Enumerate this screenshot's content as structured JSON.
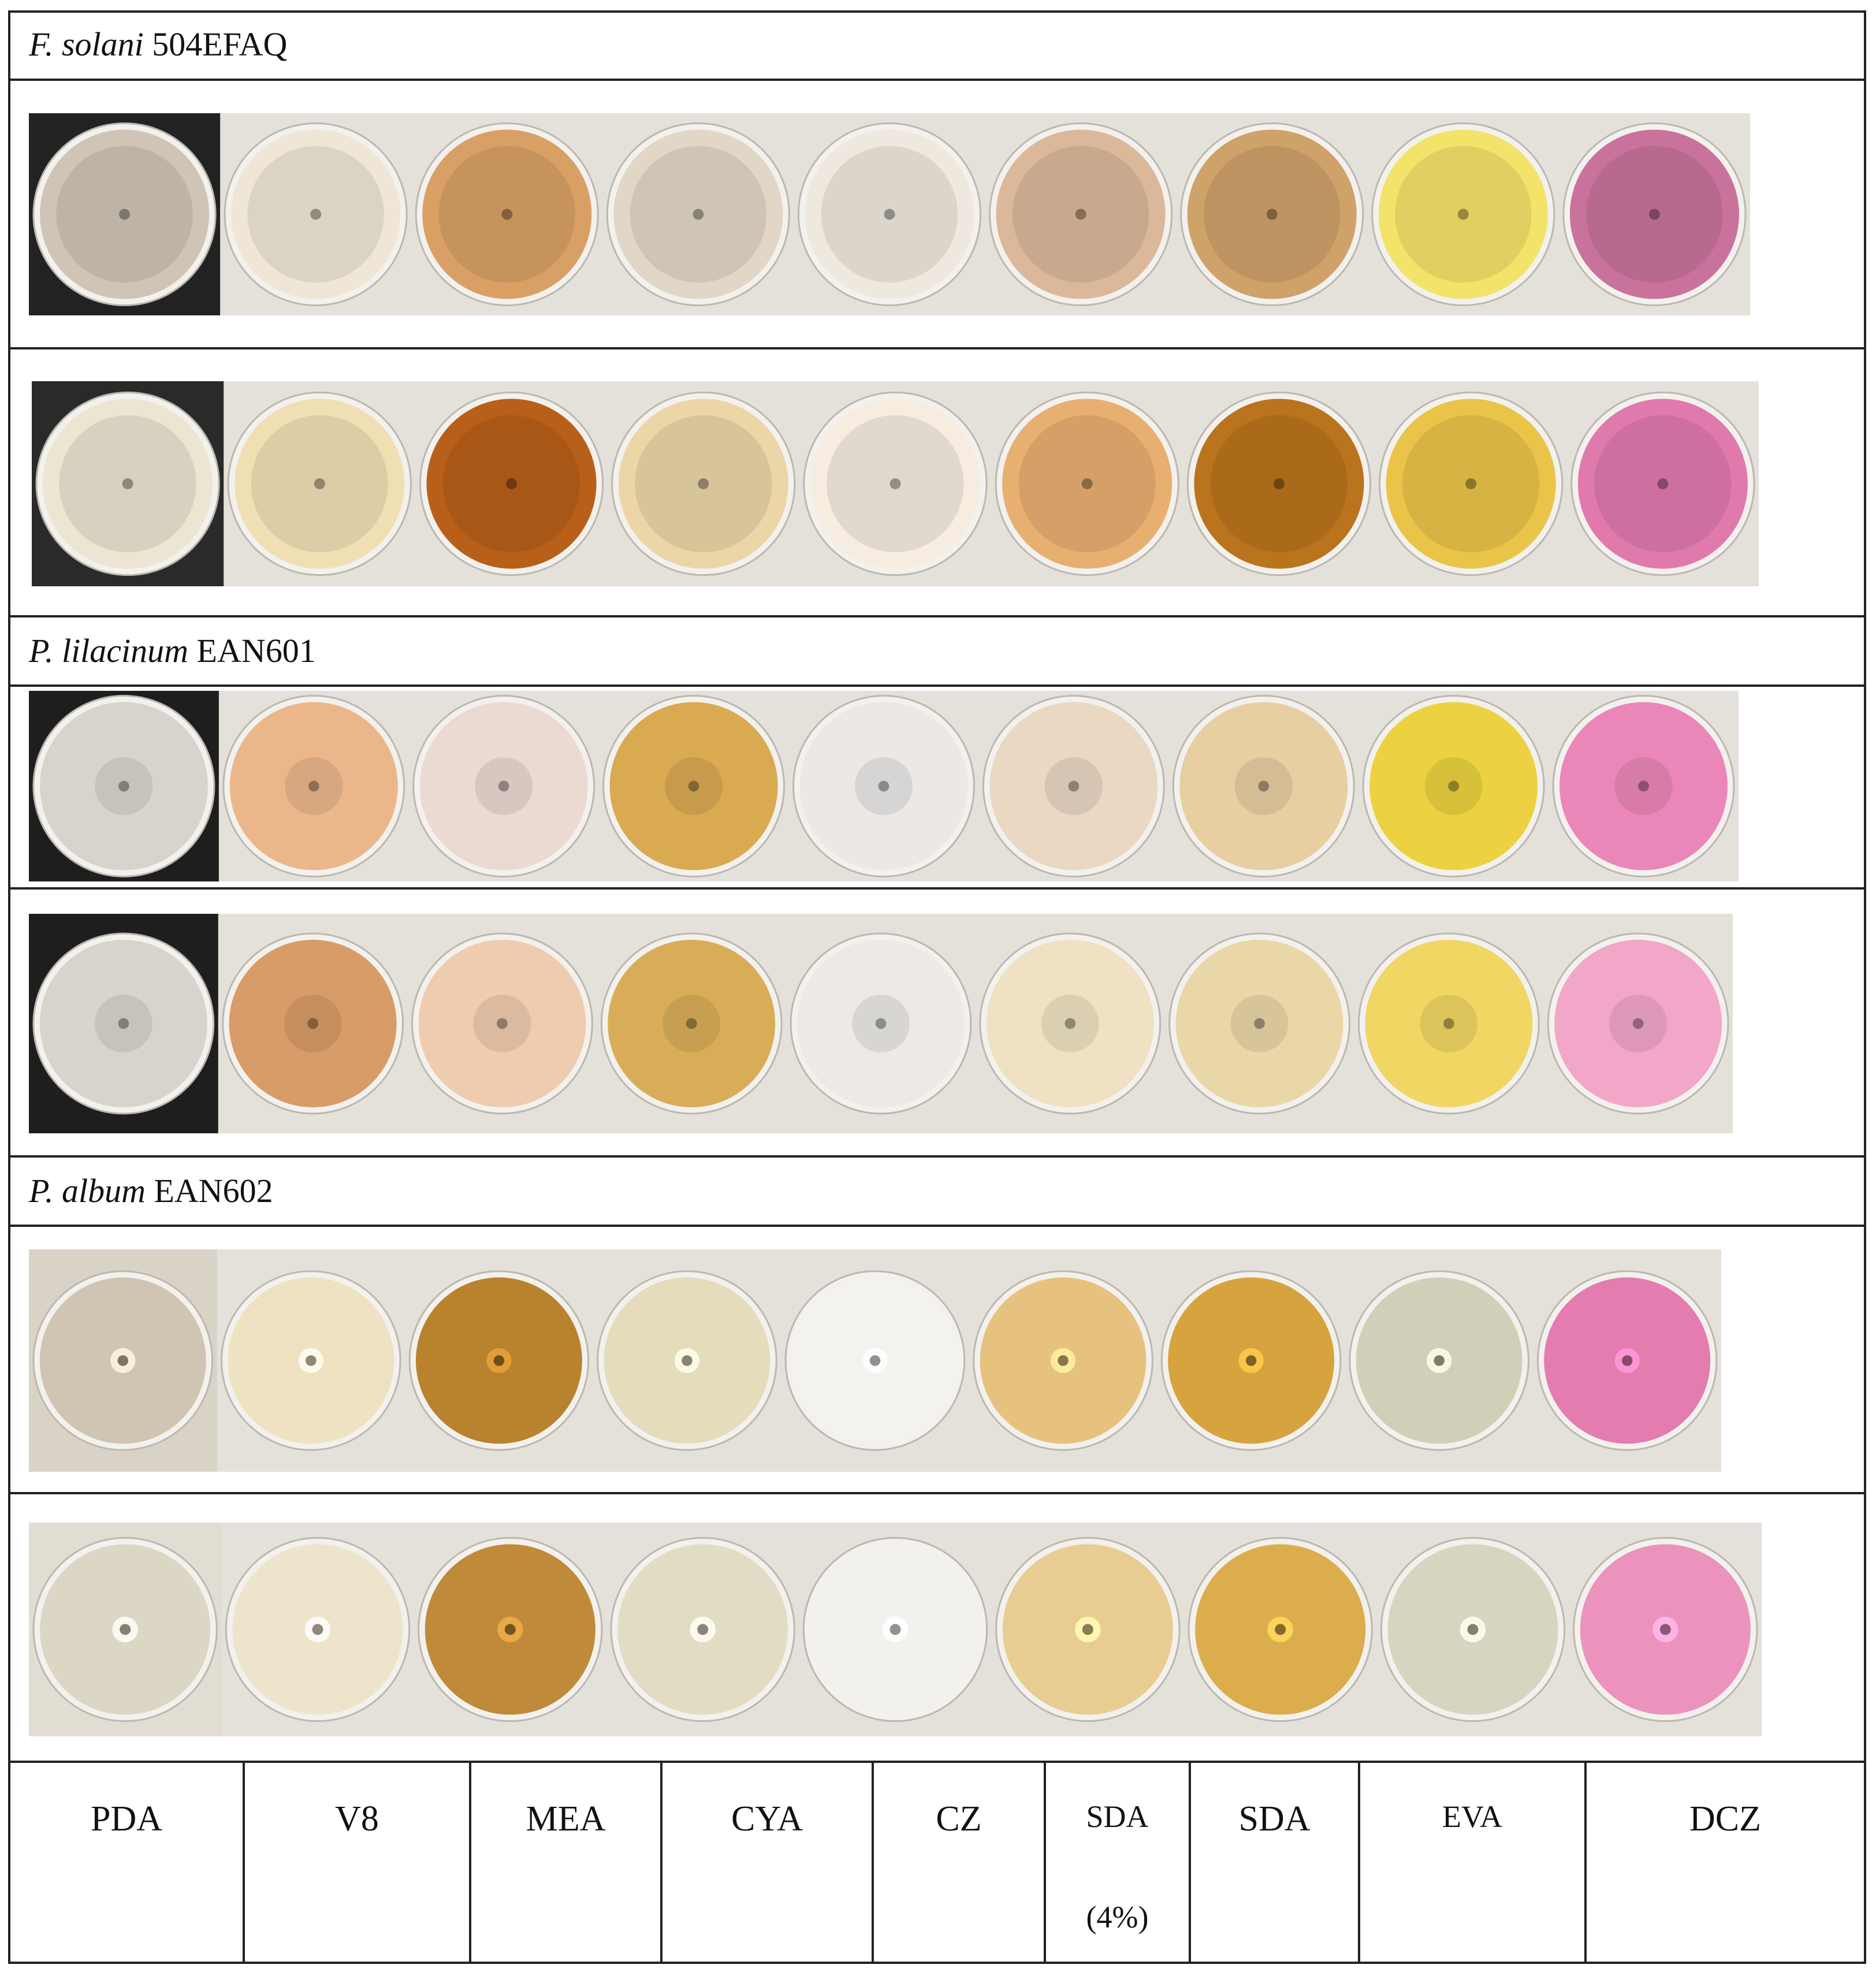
{
  "sections": [
    {
      "genus": "F. solani",
      "strain": "504EFAQ"
    },
    {
      "genus": "P. lilacinum",
      "strain": "EAN601"
    },
    {
      "genus": "P. album",
      "strain": "EAN602"
    }
  ],
  "media": [
    {
      "label": "PDA"
    },
    {
      "label": "V8"
    },
    {
      "label": "MEA"
    },
    {
      "label": "CYA"
    },
    {
      "label": "CZ"
    },
    {
      "label": "SDA",
      "sub": "(4%)"
    },
    {
      "label": "SDA"
    },
    {
      "label": "EVA"
    },
    {
      "label": "DCZ"
    }
  ],
  "plate_colors": {
    "fsolani_top": [
      "#cfc4b6",
      "#efe6d6",
      "#d9a066",
      "#e2d7c6",
      "#efe8df",
      "#dcb89a",
      "#cfa26a",
      "#f3e36a",
      "#c9729c"
    ],
    "fsolani_bottom": [
      "#ece5d2",
      "#f1dfb4",
      "#b85f1a",
      "#ecd6a8",
      "#f6ede0",
      "#e7b070",
      "#b9741d",
      "#e9c449",
      "#e07aad"
    ],
    "plilacinum_top": [
      "#d8d4cc",
      "#ebb78a",
      "#ecd9d2",
      "#d9aa52",
      "#ebe8e6",
      "#ead8c3",
      "#e7cfa2",
      "#ecd240",
      "#ea86b8"
    ],
    "plilacinum_bottom": [
      "#d8d4cc",
      "#d79c68",
      "#efcbb0",
      "#d9ad58",
      "#ece9e6",
      "#efe1c2",
      "#ead7a8",
      "#f0d663",
      "#f2a6c8"
    ],
    "palbum_top": [
      "#cfc5b2",
      "#eee2c2",
      "#b9822e",
      "#e5dcbc",
      "#f4f2ef",
      "#e7c27f",
      "#d7a33e",
      "#d2cfb8",
      "#e47cb0"
    ],
    "palbum_bottom": [
      "#dcd6c5",
      "#eee4cc",
      "#c08a3b",
      "#e3dcc5",
      "#f2f1ee",
      "#e9cc92",
      "#dcad4c",
      "#d6d6c0",
      "#eb93bd"
    ]
  }
}
